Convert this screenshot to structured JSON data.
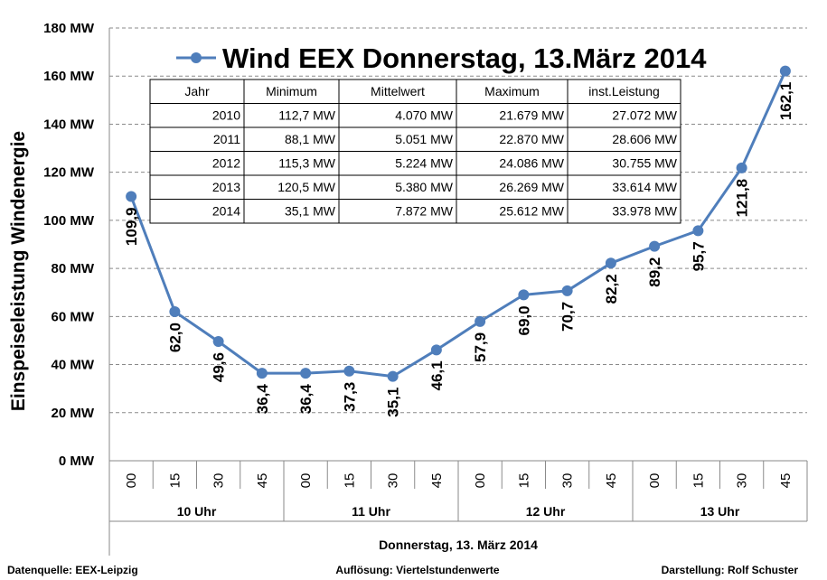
{
  "chart_data": {
    "type": "line",
    "title": "Wind EEX  Donnerstag, 13.März 2014",
    "ylabel": "Einspeiseleistung Windenergie",
    "xlabel": "Donnerstag, 13. März 2014",
    "ylim": [
      0,
      180
    ],
    "yticks": [
      "0 MW",
      "20 MW",
      "40 MW",
      "60 MW",
      "80 MW",
      "100 MW",
      "120 MW",
      "140 MW",
      "160 MW",
      "180 MW"
    ],
    "grid": true,
    "categories": [
      "00",
      "15",
      "30",
      "45",
      "00",
      "15",
      "30",
      "45",
      "00",
      "15",
      "30",
      "45",
      "00",
      "15",
      "30",
      "45"
    ],
    "hour_groups": [
      "10 Uhr",
      "11 Uhr",
      "12 Uhr",
      "13 Uhr"
    ],
    "series": [
      {
        "name": "Wind EEX  Donnerstag, 13.März 2014",
        "color": "#4f7ebb",
        "values": [
          109.9,
          62.0,
          49.6,
          36.4,
          36.4,
          37.3,
          35.1,
          46.1,
          57.9,
          69.0,
          70.7,
          82.2,
          89.2,
          95.7,
          121.8,
          162.1
        ],
        "labels": [
          "109,9",
          "62,0",
          "49,6",
          "36,4",
          "36,4",
          "37,3",
          "35,1",
          "46,1",
          "57,9",
          "69,0",
          "70,7",
          "82,2",
          "89,2",
          "95,7",
          "121,8",
          "162,1"
        ]
      }
    ],
    "table": {
      "headers": [
        "Jahr",
        "Minimum",
        "Mittelwert",
        "Maximum",
        "inst.Leistung"
      ],
      "rows": [
        [
          "2010",
          "112,7 MW",
          "4.070 MW",
          "21.679 MW",
          "27.072 MW"
        ],
        [
          "2011",
          "88,1 MW",
          "5.051 MW",
          "22.870 MW",
          "28.606 MW"
        ],
        [
          "2012",
          "115,3 MW",
          "5.224 MW",
          "24.086 MW",
          "30.755 MW"
        ],
        [
          "2013",
          "120,5 MW",
          "5.380 MW",
          "26.269 MW",
          "33.614 MW"
        ],
        [
          "2014",
          "35,1 MW",
          "7.872 MW",
          "25.612 MW",
          "33.978 MW"
        ]
      ]
    }
  },
  "footer": {
    "source": "Datenquelle:  EEX-Leipzig",
    "resolution": "Auflösung: Viertelstundenwerte",
    "author": "Darstellung: Rolf Schuster"
  }
}
